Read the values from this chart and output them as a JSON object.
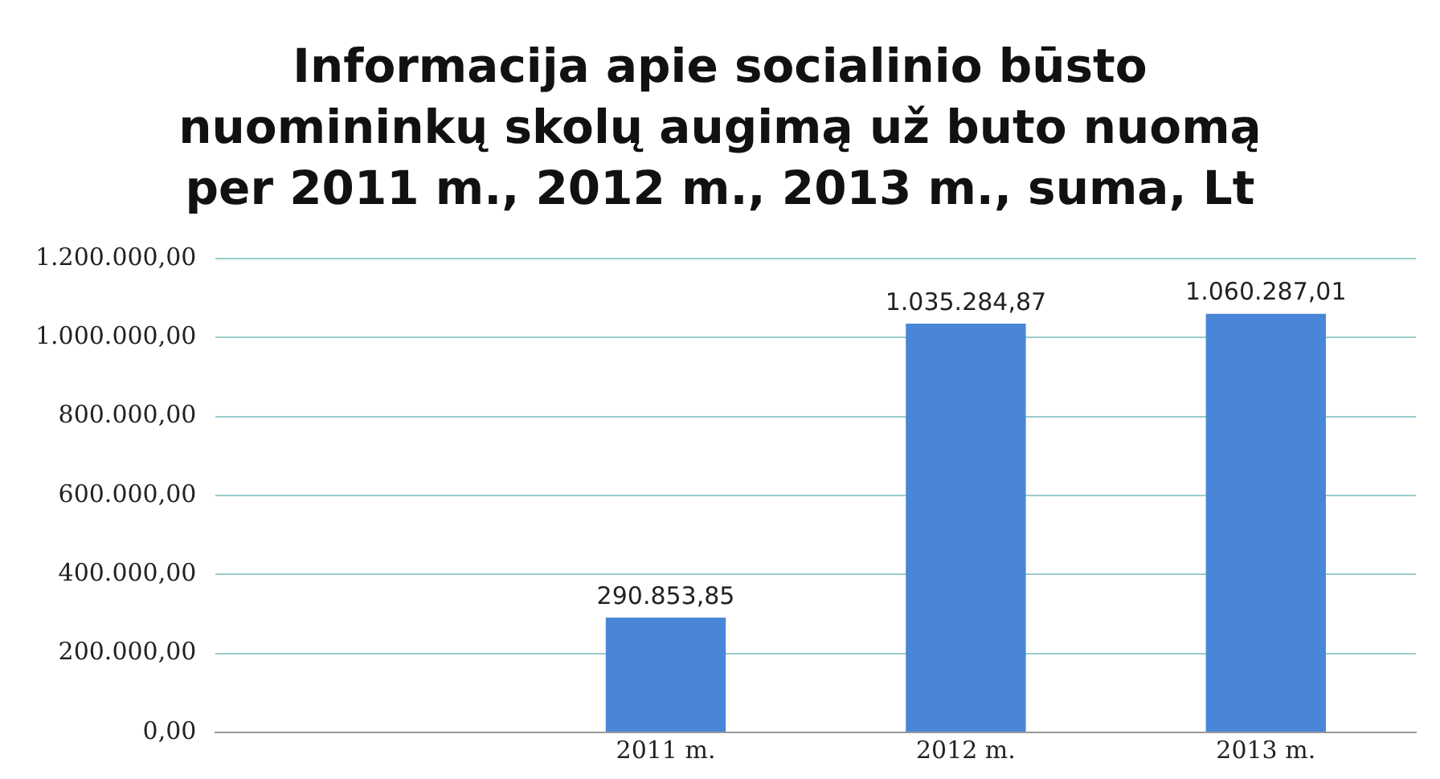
{
  "chart_data": {
    "type": "bar",
    "title": "Informacija apie socialinio būsto nuomininkų skolų augimą už buto nuomą per 2011 m., 2012 m., 2013 m., suma, Lt",
    "categories": [
      null,
      "2011 m.",
      "2012 m.",
      "2013 m."
    ],
    "values": [
      null,
      290853.85,
      1035284.87,
      1060287.01
    ],
    "value_labels": [
      null,
      "290.853,85",
      "1.035.284,87",
      "1.060.287,01"
    ],
    "color": "#4a86d8",
    "ylim": [
      0,
      1200000
    ],
    "yticks": [
      {
        "value": 0,
        "label": "0,00"
      },
      {
        "value": 200000,
        "label": "200.000,00"
      },
      {
        "value": 400000,
        "label": "400.000,00"
      },
      {
        "value": 600000,
        "label": "600.000,00"
      },
      {
        "value": 800000,
        "label": "800.000,00"
      },
      {
        "value": 1000000,
        "label": "1.000.000,00"
      },
      {
        "value": 1200000,
        "label": "1.200.000,00"
      }
    ],
    "grid": "y"
  }
}
